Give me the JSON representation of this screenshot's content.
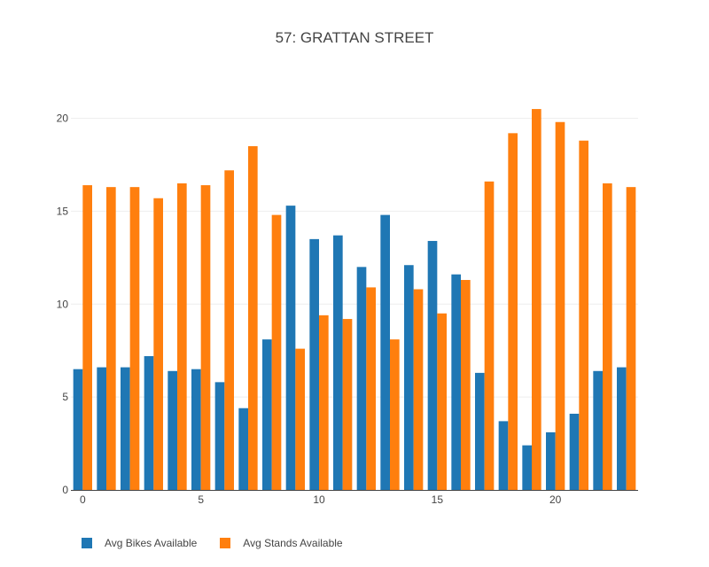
{
  "chart_data": {
    "type": "bar",
    "title": "57: GRATTAN STREET",
    "xlabel": "",
    "ylabel": "",
    "x": [
      0,
      1,
      2,
      3,
      4,
      5,
      6,
      7,
      8,
      9,
      10,
      11,
      12,
      13,
      14,
      15,
      16,
      17,
      18,
      19,
      20,
      21,
      22,
      23
    ],
    "x_ticks": [
      0,
      5,
      10,
      15,
      20
    ],
    "y_ticks": [
      0,
      5,
      10,
      15,
      20
    ],
    "xlim": [
      -0.5,
      23.5
    ],
    "ylim": [
      0,
      21.6
    ],
    "grid": true,
    "legend_position": "bottom-left",
    "series": [
      {
        "name": "Avg Bikes Available",
        "color": "#1f77b4",
        "values": [
          6.5,
          6.6,
          6.6,
          7.2,
          6.4,
          6.5,
          5.8,
          4.4,
          8.1,
          15.3,
          13.5,
          13.7,
          12.0,
          14.8,
          12.1,
          13.4,
          11.6,
          6.3,
          3.7,
          2.4,
          3.1,
          4.1,
          6.4,
          6.6
        ]
      },
      {
        "name": "Avg Stands Available",
        "color": "#ff7f0e",
        "values": [
          16.4,
          16.3,
          16.3,
          15.7,
          16.5,
          16.4,
          17.2,
          18.5,
          14.8,
          7.6,
          9.4,
          9.2,
          10.9,
          8.1,
          10.8,
          9.5,
          11.3,
          16.6,
          19.2,
          20.5,
          19.8,
          18.8,
          16.5,
          16.3
        ]
      }
    ]
  }
}
